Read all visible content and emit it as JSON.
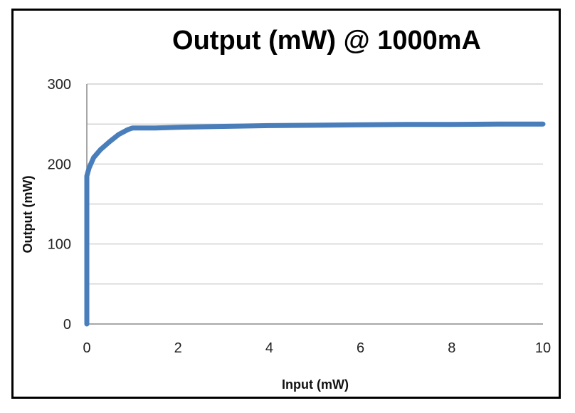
{
  "chart_data": {
    "type": "line",
    "title": "Output (mW) @ 1000mA",
    "xlabel": "Input (mW)",
    "ylabel": "Output (mW)",
    "xlim": [
      0,
      10
    ],
    "ylim": [
      0,
      300
    ],
    "x_ticks": [
      "0",
      "2",
      "4",
      "6",
      "8",
      "10"
    ],
    "y_ticks": [
      "0",
      "100",
      "200",
      "300"
    ],
    "grid": "horizontal",
    "legend": "none",
    "series": [
      {
        "color": "#4a7ebb",
        "points": [
          [
            0,
            0
          ],
          [
            0,
            185
          ],
          [
            0.05,
            195
          ],
          [
            0.15,
            208
          ],
          [
            0.3,
            218
          ],
          [
            0.5,
            228
          ],
          [
            0.7,
            237
          ],
          [
            0.9,
            243
          ],
          [
            1.0,
            245
          ],
          [
            1.5,
            245
          ],
          [
            2,
            246
          ],
          [
            3,
            247
          ],
          [
            4,
            248
          ],
          [
            5,
            248.5
          ],
          [
            6,
            249
          ],
          [
            7,
            249.5
          ],
          [
            8,
            249.5
          ],
          [
            9,
            250
          ],
          [
            10,
            250
          ]
        ]
      }
    ]
  }
}
